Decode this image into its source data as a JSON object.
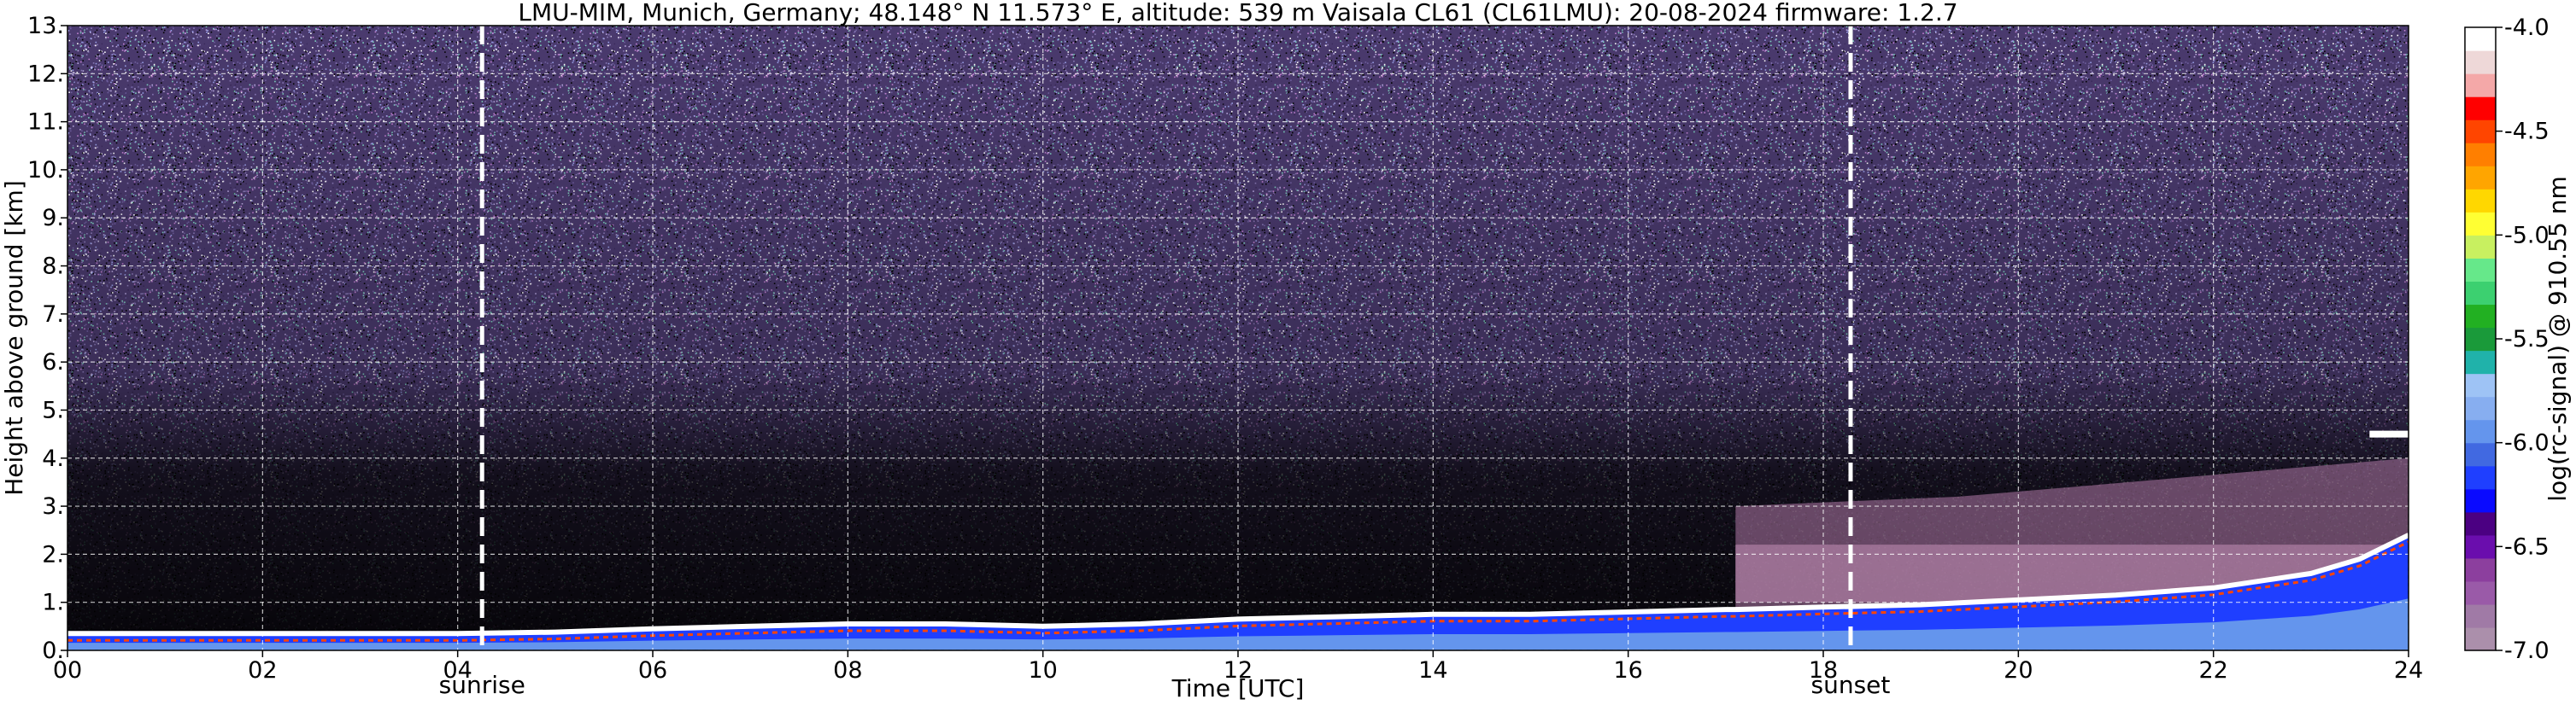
{
  "chart_data": {
    "type": "heatmap",
    "title": "LMU-MIM, Munich, Germany; 48.148° N 11.573° E, altitude: 539 m    Vaisala CL61 (CL61LMU): 20-08-2024    firmware: 1.2.7",
    "xlabel": "Time [UTC]",
    "ylabel": "Height above ground [km]",
    "xlim": [
      0,
      24
    ],
    "ylim": [
      0,
      13
    ],
    "x_ticks": [
      0,
      2,
      4,
      6,
      8,
      10,
      12,
      14,
      16,
      18,
      20,
      22,
      24
    ],
    "x_tick_labels": [
      "00",
      "02",
      "04",
      "06",
      "08",
      "10",
      "12",
      "14",
      "16",
      "18",
      "20",
      "22",
      "24"
    ],
    "y_ticks": [
      0,
      1,
      2,
      3,
      4,
      5,
      6,
      7,
      8,
      9,
      10,
      11,
      12,
      13
    ],
    "y_tick_labels": [
      "0.",
      "1.",
      "2.",
      "3.",
      "4.",
      "5.",
      "6.",
      "7.",
      "8.",
      "9.",
      "10.",
      "11.",
      "12.",
      "13."
    ],
    "grid": true,
    "colorbar": {
      "label": "log(rc-signal) @ 910.55 nm",
      "range": [
        -7.0,
        -4.0
      ],
      "ticks": [
        -7.0,
        -6.5,
        -6.0,
        -5.5,
        -5.0,
        -4.5,
        -4.0
      ],
      "tick_labels": [
        "-7.0",
        "-6.5",
        "-6.0",
        "-5.5",
        "-5.0",
        "-4.5",
        "-4.0"
      ],
      "colors": [
        "#ab8fab",
        "#a07aa6",
        "#9a5aa8",
        "#8c3f9e",
        "#6a0dad",
        "#4b0082",
        "#0a0aff",
        "#1f3fff",
        "#4169e1",
        "#6495ed",
        "#87aef0",
        "#9ec3f5",
        "#20b2aa",
        "#1a9a3a",
        "#22b022",
        "#3cd070",
        "#66e88a",
        "#c8f060",
        "#ffff33",
        "#ffd700",
        "#ffa500",
        "#ff7f00",
        "#ff4500",
        "#ff0000",
        "#f4a8a8",
        "#eed8d8",
        "#ffffff"
      ]
    },
    "annotations": [
      {
        "label": "sunrise",
        "x": 4.25
      },
      {
        "label": "sunset",
        "x": 18.28
      }
    ],
    "mixing_layer_top_km": {
      "x": [
        0,
        2,
        4,
        5,
        6,
        7,
        8,
        9,
        10,
        11,
        12,
        13,
        14,
        15,
        16,
        17,
        17.1,
        18,
        19,
        20,
        21,
        22,
        23,
        23.5,
        24
      ],
      "y": [
        0.35,
        0.35,
        0.35,
        0.38,
        0.45,
        0.5,
        0.55,
        0.55,
        0.5,
        0.55,
        0.65,
        0.7,
        0.75,
        0.75,
        0.8,
        0.85,
        0.85,
        0.9,
        0.95,
        1.05,
        1.15,
        1.3,
        1.6,
        1.9,
        2.4
      ]
    },
    "residual_layer_km": {
      "x_start": 17.1,
      "x_end": 24,
      "top": [
        3.0,
        3.1,
        3.2,
        3.4,
        3.6,
        3.8,
        4.0
      ],
      "bottom": 0.85
    },
    "cloud_layer": {
      "x_start": 23.6,
      "x_end": 24,
      "height_km": 4.5
    }
  }
}
